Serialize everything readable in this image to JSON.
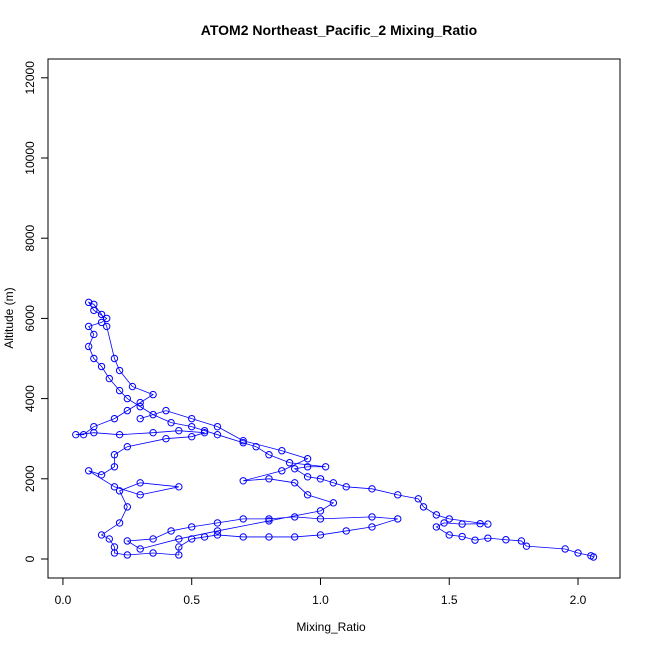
{
  "chart_data": {
    "type": "line",
    "title": "ATOM2 Northeast_Pacific_2 Mixing_Ratio",
    "xlabel": "Mixing_Ratio",
    "ylabel": "Altitude (m)",
    "xlim": [
      -0.058,
      2.163
    ],
    "ylim": [
      -474,
      12469
    ],
    "xticks": [
      {
        "value": 0,
        "label": "0.0"
      },
      0.5,
      {
        "value": 1,
        "label": "1.0"
      },
      1.5,
      {
        "value": 2,
        "label": "2.0"
      }
    ],
    "yticks": [
      0,
      2000,
      4000,
      6000,
      8000,
      10000,
      12000
    ],
    "series": [
      {
        "color": "#0000ff",
        "x": [
          2.06,
          2.05,
          2.0,
          1.95,
          1.8,
          1.78,
          1.72,
          1.65,
          1.6,
          1.55,
          1.5,
          1.45,
          1.48,
          1.55,
          1.62,
          1.65,
          1.5,
          1.45,
          1.4,
          1.38,
          1.3,
          1.2,
          1.1,
          1.05,
          1.0,
          0.95,
          0.9,
          0.95,
          1.02,
          0.88,
          0.8,
          0.75,
          0.7,
          0.6,
          0.55,
          0.5,
          0.42,
          0.35,
          0.3,
          0.25,
          0.22,
          0.18,
          0.15,
          0.12,
          0.1,
          0.12,
          0.1,
          0.15,
          0.17,
          0.12,
          0.1,
          0.12,
          0.15,
          0.17,
          0.2,
          0.22,
          0.27,
          0.35,
          0.3,
          0.25,
          0.2,
          0.12,
          0.08,
          0.05,
          0.12,
          0.22,
          0.35,
          0.45,
          0.55,
          0.5,
          0.4,
          0.25,
          0.2,
          0.2,
          0.15,
          0.1,
          0.2,
          0.3,
          0.45,
          0.3,
          0.22,
          0.25,
          0.22,
          0.15,
          0.18,
          0.2,
          0.2,
          0.25,
          0.35,
          0.45,
          0.45,
          0.5,
          0.55,
          0.6,
          0.7,
          0.8,
          0.9,
          1.0,
          1.1,
          1.2,
          1.3,
          1.2,
          1.0,
          0.9,
          0.8,
          0.7,
          0.6,
          0.5,
          0.42,
          0.35,
          0.25,
          0.3,
          0.45,
          0.6,
          0.8,
          1.0,
          1.05,
          0.95,
          0.9,
          0.8,
          0.7,
          0.85,
          0.95,
          0.85,
          0.7,
          0.6,
          0.5,
          0.4,
          0.3
        ],
        "values": [
          50,
          80,
          150,
          250,
          320,
          450,
          480,
          520,
          470,
          560,
          600,
          800,
          900,
          870,
          880,
          870,
          1000,
          1100,
          1300,
          1500,
          1600,
          1750,
          1800,
          1900,
          2000,
          2050,
          2250,
          2300,
          2300,
          2400,
          2600,
          2800,
          2900,
          3100,
          3200,
          3300,
          3400,
          3600,
          3800,
          4000,
          4200,
          4500,
          4800,
          5000,
          5300,
          5600,
          5800,
          5900,
          6000,
          6200,
          6400,
          6350,
          6100,
          5800,
          5000,
          4700,
          4300,
          4100,
          3900,
          3700,
          3500,
          3300,
          3100,
          3100,
          3150,
          3100,
          3150,
          3200,
          3150,
          3050,
          3000,
          2800,
          2600,
          2300,
          2100,
          2200,
          1800,
          1600,
          1800,
          1900,
          1700,
          1300,
          900,
          600,
          500,
          300,
          150,
          100,
          150,
          100,
          300,
          500,
          550,
          600,
          550,
          550,
          550,
          600,
          700,
          800,
          1000,
          1050,
          1000,
          1050,
          1000,
          1000,
          900,
          800,
          700,
          500,
          450,
          250,
          500,
          700,
          950,
          1200,
          1400,
          1600,
          1900,
          2000,
          1950,
          2200,
          2500,
          2700,
          2950,
          3300,
          3500,
          3700,
          3500
        ]
      }
    ]
  }
}
